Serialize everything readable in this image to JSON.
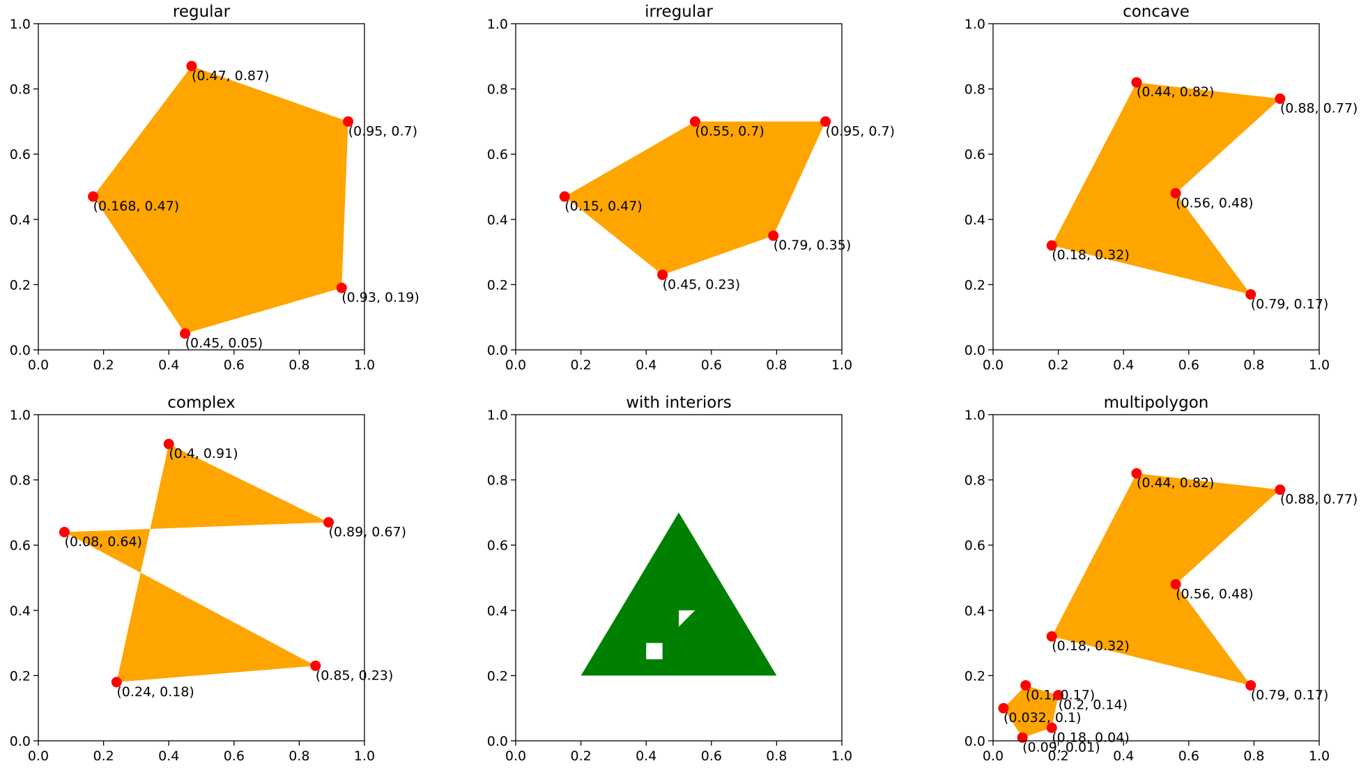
{
  "chart_data": [
    {
      "type": "polygon",
      "title": "regular",
      "xlim": [
        0.0,
        1.0
      ],
      "ylim": [
        1.0,
        0.0
      ],
      "y_axis_inverted": true,
      "xticks": [
        "0.0",
        "0.2",
        "0.4",
        "0.6",
        "0.8",
        "1.0"
      ],
      "yticks": [
        "0.0",
        "0.2",
        "0.4",
        "0.6",
        "0.8",
        "1.0"
      ],
      "fill_color": "#ffa500",
      "vertex_color": "#ff0000",
      "polygons": [
        {
          "exterior": [
            [
              0.45,
              0.05
            ],
            [
              0.93,
              0.19
            ],
            [
              0.95,
              0.7
            ],
            [
              0.47,
              0.87
            ],
            [
              0.168,
              0.47
            ]
          ],
          "interiors": []
        }
      ],
      "points": [
        {
          "x": 0.45,
          "y": 0.05,
          "label": "(0.45, 0.05)"
        },
        {
          "x": 0.93,
          "y": 0.19,
          "label": "(0.93, 0.19)"
        },
        {
          "x": 0.95,
          "y": 0.7,
          "label": "(0.95, 0.7)"
        },
        {
          "x": 0.47,
          "y": 0.87,
          "label": "(0.47, 0.87)"
        },
        {
          "x": 0.168,
          "y": 0.47,
          "label": "(0.168, 0.47)"
        }
      ]
    },
    {
      "type": "polygon",
      "title": "irregular",
      "xlim": [
        0.0,
        1.0
      ],
      "ylim": [
        1.0,
        0.0
      ],
      "y_axis_inverted": true,
      "xticks": [
        "0.0",
        "0.2",
        "0.4",
        "0.6",
        "0.8",
        "1.0"
      ],
      "yticks": [
        "0.0",
        "0.2",
        "0.4",
        "0.6",
        "0.8",
        "1.0"
      ],
      "fill_color": "#ffa500",
      "vertex_color": "#ff0000",
      "polygons": [
        {
          "exterior": [
            [
              0.45,
              0.23
            ],
            [
              0.79,
              0.35
            ],
            [
              0.95,
              0.7
            ],
            [
              0.55,
              0.7
            ],
            [
              0.15,
              0.47
            ]
          ],
          "interiors": []
        }
      ],
      "points": [
        {
          "x": 0.45,
          "y": 0.23,
          "label": "(0.45, 0.23)"
        },
        {
          "x": 0.79,
          "y": 0.35,
          "label": "(0.79, 0.35)"
        },
        {
          "x": 0.95,
          "y": 0.7,
          "label": "(0.95, 0.7)"
        },
        {
          "x": 0.55,
          "y": 0.7,
          "label": "(0.55, 0.7)"
        },
        {
          "x": 0.15,
          "y": 0.47,
          "label": "(0.15, 0.47)"
        }
      ]
    },
    {
      "type": "polygon",
      "title": "concave",
      "xlim": [
        0.0,
        1.0
      ],
      "ylim": [
        1.0,
        0.0
      ],
      "y_axis_inverted": true,
      "xticks": [
        "0.0",
        "0.2",
        "0.4",
        "0.6",
        "0.8",
        "1.0"
      ],
      "yticks": [
        "0.0",
        "0.2",
        "0.4",
        "0.6",
        "0.8",
        "1.0"
      ],
      "fill_color": "#ffa500",
      "vertex_color": "#ff0000",
      "polygons": [
        {
          "exterior": [
            [
              0.18,
              0.32
            ],
            [
              0.79,
              0.17
            ],
            [
              0.56,
              0.48
            ],
            [
              0.88,
              0.77
            ],
            [
              0.44,
              0.82
            ]
          ],
          "interiors": []
        }
      ],
      "points": [
        {
          "x": 0.18,
          "y": 0.32,
          "label": "(0.18, 0.32)"
        },
        {
          "x": 0.79,
          "y": 0.17,
          "label": "(0.79, 0.17)"
        },
        {
          "x": 0.56,
          "y": 0.48,
          "label": "(0.56, 0.48)"
        },
        {
          "x": 0.88,
          "y": 0.77,
          "label": "(0.88, 0.77)"
        },
        {
          "x": 0.44,
          "y": 0.82,
          "label": "(0.44, 0.82)"
        }
      ]
    },
    {
      "type": "polygon",
      "title": "complex",
      "xlim": [
        0.0,
        1.0
      ],
      "ylim": [
        1.0,
        0.0
      ],
      "y_axis_inverted": true,
      "xticks": [
        "0.0",
        "0.2",
        "0.4",
        "0.6",
        "0.8",
        "1.0"
      ],
      "yticks": [
        "0.0",
        "0.2",
        "0.4",
        "0.6",
        "0.8",
        "1.0"
      ],
      "fill_color": "#ffa500",
      "vertex_color": "#ff0000",
      "polygons": [
        {
          "exterior": [
            [
              0.24,
              0.18
            ],
            [
              0.85,
              0.23
            ],
            [
              0.08,
              0.64
            ],
            [
              0.89,
              0.67
            ],
            [
              0.4,
              0.91
            ]
          ],
          "interiors": []
        }
      ],
      "points": [
        {
          "x": 0.24,
          "y": 0.18,
          "label": "(0.24, 0.18)"
        },
        {
          "x": 0.85,
          "y": 0.23,
          "label": "(0.85, 0.23)"
        },
        {
          "x": 0.08,
          "y": 0.64,
          "label": "(0.08, 0.64)"
        },
        {
          "x": 0.89,
          "y": 0.67,
          "label": "(0.89, 0.67)"
        },
        {
          "x": 0.4,
          "y": 0.91,
          "label": "(0.4, 0.91)"
        }
      ]
    },
    {
      "type": "polygon",
      "title": "with interiors",
      "xlim": [
        0.0,
        1.0
      ],
      "ylim": [
        1.0,
        0.0
      ],
      "y_axis_inverted": true,
      "xticks": [
        "0.0",
        "0.2",
        "0.4",
        "0.6",
        "0.8",
        "1.0"
      ],
      "yticks": [
        "0.0",
        "0.2",
        "0.4",
        "0.6",
        "0.8",
        "1.0"
      ],
      "fill_color": "#008000",
      "vertex_color": "#ff0000",
      "polygons": [
        {
          "exterior": [
            [
              0.2,
              0.2
            ],
            [
              0.8,
              0.2
            ],
            [
              0.5,
              0.7
            ]
          ],
          "interiors": [
            [
              [
                0.4,
                0.25
              ],
              [
                0.45,
                0.25
              ],
              [
                0.45,
                0.3
              ],
              [
                0.4,
                0.3
              ]
            ],
            [
              [
                0.5,
                0.35
              ],
              [
                0.55,
                0.4
              ],
              [
                0.5,
                0.4
              ]
            ]
          ]
        }
      ],
      "points": []
    },
    {
      "type": "polygon",
      "title": "multipolygon",
      "xlim": [
        0.0,
        1.0
      ],
      "ylim": [
        1.0,
        0.0
      ],
      "y_axis_inverted": true,
      "xticks": [
        "0.0",
        "0.2",
        "0.4",
        "0.6",
        "0.8",
        "1.0"
      ],
      "yticks": [
        "0.0",
        "0.2",
        "0.4",
        "0.6",
        "0.8",
        "1.0"
      ],
      "fill_color": "#ffa500",
      "vertex_color": "#ff0000",
      "polygons": [
        {
          "exterior": [
            [
              0.09,
              0.01
            ],
            [
              0.18,
              0.04
            ],
            [
              0.2,
              0.14
            ],
            [
              0.1,
              0.17
            ],
            [
              0.032,
              0.1
            ]
          ],
          "interiors": []
        },
        {
          "exterior": [
            [
              0.18,
              0.32
            ],
            [
              0.79,
              0.17
            ],
            [
              0.56,
              0.48
            ],
            [
              0.88,
              0.77
            ],
            [
              0.44,
              0.82
            ]
          ],
          "interiors": []
        }
      ],
      "points": [
        {
          "x": 0.09,
          "y": 0.01,
          "label": "(0.09, 0.01)"
        },
        {
          "x": 0.18,
          "y": 0.04,
          "label": "(0.18, 0.04)"
        },
        {
          "x": 0.2,
          "y": 0.14,
          "label": "(0.2, 0.14)"
        },
        {
          "x": 0.1,
          "y": 0.17,
          "label": "(0.1, 0.17)"
        },
        {
          "x": 0.032,
          "y": 0.1,
          "label": "(0.032, 0.1)"
        },
        {
          "x": 0.18,
          "y": 0.32,
          "label": "(0.18, 0.32)"
        },
        {
          "x": 0.79,
          "y": 0.17,
          "label": "(0.79, 0.17)"
        },
        {
          "x": 0.56,
          "y": 0.48,
          "label": "(0.56, 0.48)"
        },
        {
          "x": 0.88,
          "y": 0.77,
          "label": "(0.88, 0.77)"
        },
        {
          "x": 0.44,
          "y": 0.82,
          "label": "(0.44, 0.82)"
        }
      ]
    }
  ]
}
